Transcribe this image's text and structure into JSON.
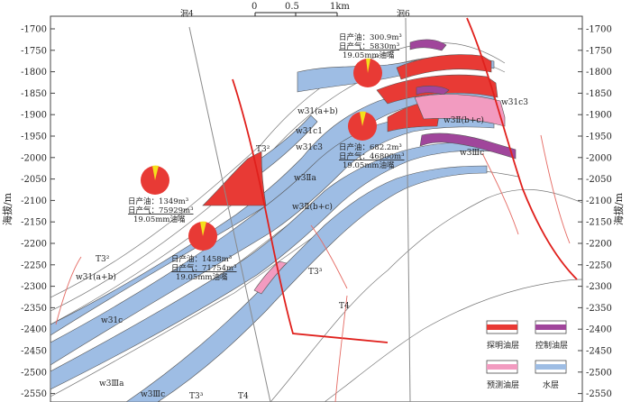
{
  "figure": {
    "y_axis_title": "海拔/m",
    "y_ticks": [
      "-1700",
      "-1750",
      "-1800",
      "-1850",
      "-1900",
      "-1950",
      "-2000",
      "-2050",
      "-2100",
      "-2150",
      "-2200",
      "-2250",
      "-2300",
      "-2350",
      "-2400",
      "-2450",
      "-2500",
      "-2550"
    ],
    "scale_bar": {
      "labels": [
        "0",
        "0.5",
        "1km"
      ]
    },
    "wells": [
      {
        "name": "洄4"
      },
      {
        "name": "洄6"
      }
    ],
    "strata_labels": {
      "w31ab_upper": "w31(a+b)",
      "w31c1": "w31c1",
      "w31c3_center": "w31c3",
      "w3IIa": "w3Ⅱa",
      "w3IIbc_center": "w3Ⅱ(b+c)",
      "w31c3_right": "w31c3",
      "w3IIbc_right": "w3Ⅱ(b+c)",
      "w3IIIc_right": "w3Ⅲc",
      "w31ab_left": "w31(a+b)",
      "w31c_left": "w31c",
      "w3IIIa_bottom": "w3Ⅲa",
      "w3IIIc_bottom": "w3Ⅲc"
    },
    "fault_labels": {
      "T3_2_a": "T3²",
      "T3_2_b": "T3²",
      "T3_3_a": "T3³",
      "T3_3_b": "T3³",
      "T4_a": "T4",
      "T4_b": "T4"
    },
    "production": [
      {
        "oil": "日产油：1349m³",
        "gas": "日产气：75929m³",
        "choke": "19.05mm油嘴"
      },
      {
        "oil": "日产油：1458m³",
        "gas": "日产气：71754m³",
        "choke": "19.05mm油嘴"
      },
      {
        "oil": "日产油：300.9m³",
        "gas": "日产气：5830m³",
        "choke": "19.05mm油嘴"
      },
      {
        "oil": "日产油：682.2m³",
        "gas": "日产气：46800m³",
        "choke": "19.05mm油嘴"
      }
    ],
    "legend": [
      {
        "label": "探明油层",
        "color": "#e83a35"
      },
      {
        "label": "控制油层",
        "color": "#a0469b"
      },
      {
        "label": "预测油层",
        "color": "#f29bc0"
      },
      {
        "label": "水层",
        "color": "#9ebde4"
      }
    ],
    "colors": {
      "fault": "#e0201c",
      "oil": "#e83a35",
      "control": "#a0469b",
      "predicted": "#f29bc0",
      "water": "#9ebde4"
    }
  }
}
